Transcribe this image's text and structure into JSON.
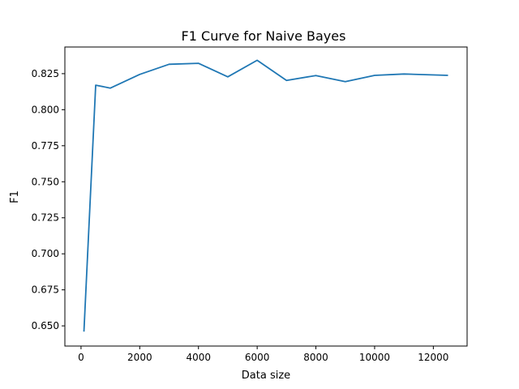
{
  "chart_data": {
    "type": "line",
    "title": "F1 Curve for Naive Bayes",
    "xlabel": "Data size",
    "ylabel": "F1",
    "xlim": [
      -550,
      13150
    ],
    "ylim": [
      0.636,
      0.8435
    ],
    "xticks": [
      0,
      2000,
      4000,
      6000,
      8000,
      10000,
      12000
    ],
    "yticks": [
      0.65,
      0.675,
      0.7,
      0.725,
      0.75,
      0.775,
      0.8,
      0.825
    ],
    "xtick_labels": [
      "0",
      "2000",
      "4000",
      "6000",
      "8000",
      "10000",
      "12000"
    ],
    "ytick_labels": [
      "0.650",
      "0.675",
      "0.700",
      "0.725",
      "0.750",
      "0.775",
      "0.800",
      "0.825"
    ],
    "grid": false,
    "series": [
      {
        "color": "#1f77b4",
        "x": [
          100,
          500,
          1000,
          2000,
          3000,
          4000,
          5000,
          6000,
          7000,
          8000,
          9000,
          10000,
          11000,
          12500
        ],
        "y": [
          0.646,
          0.817,
          0.815,
          0.8245,
          0.8315,
          0.8322,
          0.8228,
          0.8343,
          0.8203,
          0.8237,
          0.8195,
          0.8238,
          0.8248,
          0.8238
        ]
      }
    ]
  }
}
